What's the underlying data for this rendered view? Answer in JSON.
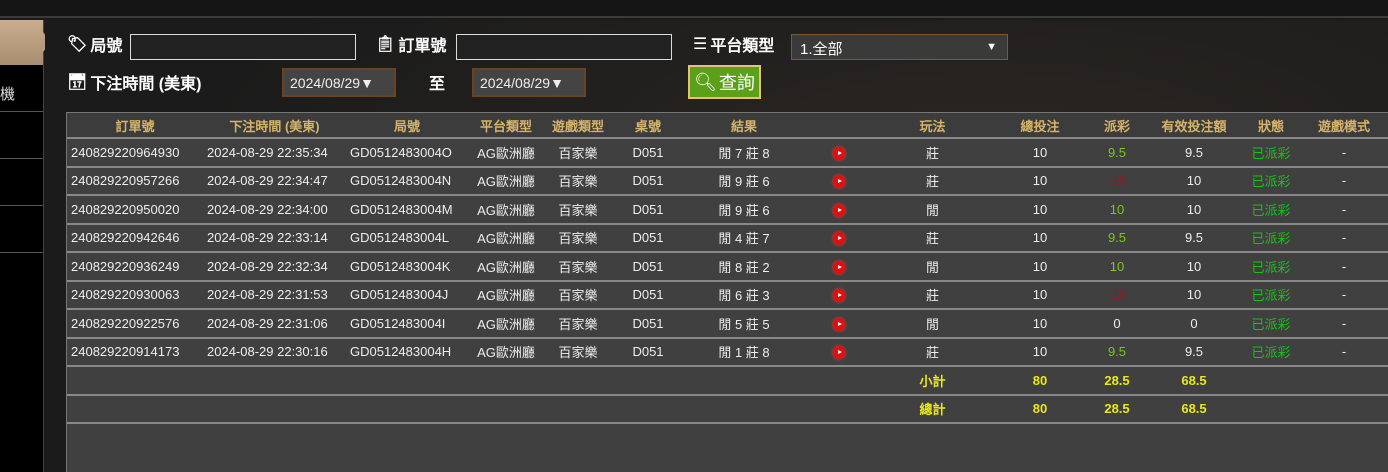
{
  "sidebar": {
    "items": [
      "",
      "機",
      "",
      "",
      "",
      ""
    ]
  },
  "filters": {
    "round_label": "局號",
    "round_value": "",
    "order_label": "訂單號",
    "order_value": "",
    "platform_label": "平台類型",
    "platform_value": "1.全部",
    "time_label": "下注時間 (美東)",
    "date_from": "2024/08/29▼",
    "to_label": "至",
    "date_to": "2024/08/29▼",
    "query_label": "查詢"
  },
  "colors": {
    "accent": "#d6b36a",
    "win": "#78c81e",
    "loss": "#8a1c2a",
    "status": "#18c018",
    "total": "#e8e81a",
    "button": "#5aa119"
  },
  "table": {
    "headers": [
      "訂單號",
      "下注時間 (美東)",
      "局號",
      "平台類型",
      "遊戲類型",
      "桌號",
      "結果",
      "",
      "玩法",
      "總投注",
      "派彩",
      "有效投注額",
      "狀態",
      "遊戲模式"
    ],
    "rows": [
      {
        "order": "240829220964930",
        "time": "2024-08-29 22:35:34",
        "round": "GD0512483004O",
        "platform": "AG歐洲廳",
        "game": "百家樂",
        "table": "D051",
        "result": "閒 7 莊 8",
        "play": "莊",
        "bet": "10",
        "payout": "9.5",
        "payout_type": "pos",
        "valid": "9.5",
        "status": "已派彩",
        "mode": "-"
      },
      {
        "order": "240829220957266",
        "time": "2024-08-29 22:34:47",
        "round": "GD0512483004N",
        "platform": "AG歐洲廳",
        "game": "百家樂",
        "table": "D051",
        "result": "閒 9 莊 6",
        "play": "莊",
        "bet": "10",
        "payout": "-10",
        "payout_type": "neg",
        "valid": "10",
        "status": "已派彩",
        "mode": "-"
      },
      {
        "order": "240829220950020",
        "time": "2024-08-29 22:34:00",
        "round": "GD0512483004M",
        "platform": "AG歐洲廳",
        "game": "百家樂",
        "table": "D051",
        "result": "閒 9 莊 6",
        "play": "閒",
        "bet": "10",
        "payout": "10",
        "payout_type": "pos",
        "valid": "10",
        "status": "已派彩",
        "mode": "-"
      },
      {
        "order": "240829220942646",
        "time": "2024-08-29 22:33:14",
        "round": "GD0512483004L",
        "platform": "AG歐洲廳",
        "game": "百家樂",
        "table": "D051",
        "result": "閒 4 莊 7",
        "play": "莊",
        "bet": "10",
        "payout": "9.5",
        "payout_type": "pos",
        "valid": "9.5",
        "status": "已派彩",
        "mode": "-"
      },
      {
        "order": "240829220936249",
        "time": "2024-08-29 22:32:34",
        "round": "GD0512483004K",
        "platform": "AG歐洲廳",
        "game": "百家樂",
        "table": "D051",
        "result": "閒 8 莊 2",
        "play": "閒",
        "bet": "10",
        "payout": "10",
        "payout_type": "pos",
        "valid": "10",
        "status": "已派彩",
        "mode": "-"
      },
      {
        "order": "240829220930063",
        "time": "2024-08-29 22:31:53",
        "round": "GD0512483004J",
        "platform": "AG歐洲廳",
        "game": "百家樂",
        "table": "D051",
        "result": "閒 6 莊 3",
        "play": "莊",
        "bet": "10",
        "payout": "-10",
        "payout_type": "neg",
        "valid": "10",
        "status": "已派彩",
        "mode": "-"
      },
      {
        "order": "240829220922576",
        "time": "2024-08-29 22:31:06",
        "round": "GD0512483004I",
        "platform": "AG歐洲廳",
        "game": "百家樂",
        "table": "D051",
        "result": "閒 5 莊 5",
        "play": "閒",
        "bet": "10",
        "payout": "0",
        "payout_type": "zero",
        "valid": "0",
        "status": "已派彩",
        "mode": "-"
      },
      {
        "order": "240829220914173",
        "time": "2024-08-29 22:30:16",
        "round": "GD0512483004H",
        "platform": "AG歐洲廳",
        "game": "百家樂",
        "table": "D051",
        "result": "閒 1 莊 8",
        "play": "莊",
        "bet": "10",
        "payout": "9.5",
        "payout_type": "pos",
        "valid": "9.5",
        "status": "已派彩",
        "mode": "-"
      }
    ],
    "subtotal": {
      "label": "小計",
      "bet": "80",
      "payout": "28.5",
      "valid": "68.5"
    },
    "total": {
      "label": "總計",
      "bet": "80",
      "payout": "28.5",
      "valid": "68.5"
    }
  }
}
